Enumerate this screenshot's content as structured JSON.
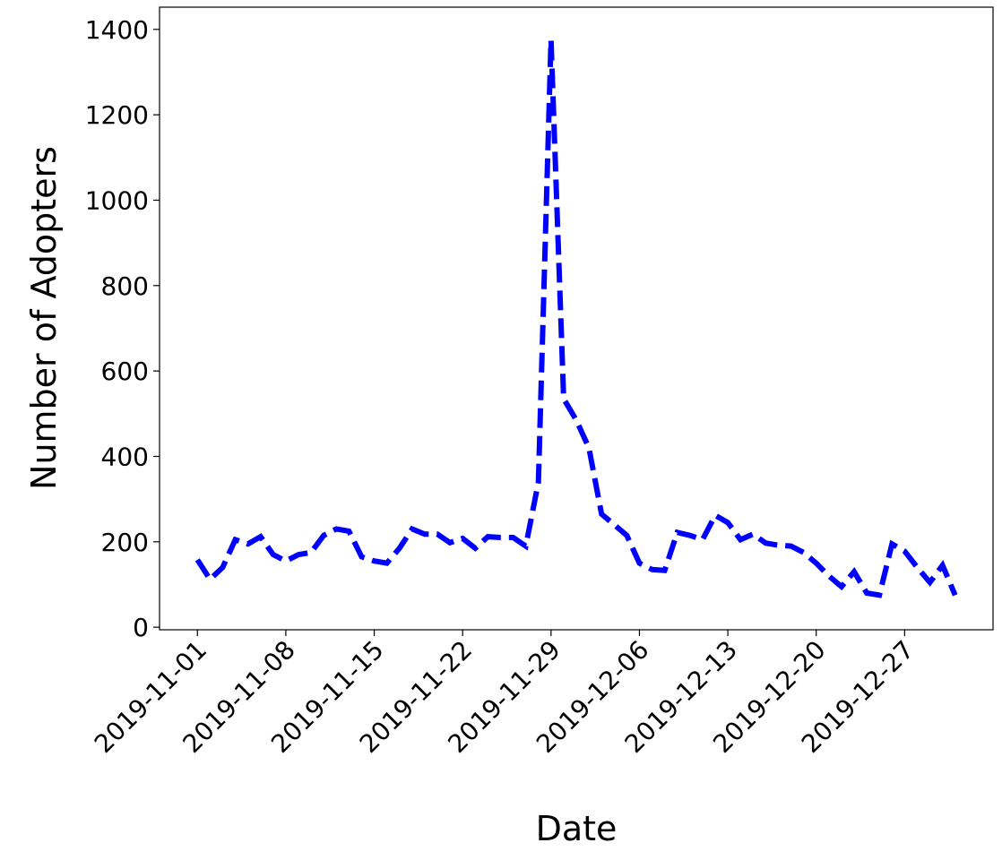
{
  "chart_data": {
    "type": "line",
    "x_label": "Date",
    "y_label": "Number of Adopters",
    "x": [
      "2019-11-01",
      "2019-11-02",
      "2019-11-03",
      "2019-11-04",
      "2019-11-05",
      "2019-11-06",
      "2019-11-07",
      "2019-11-08",
      "2019-11-09",
      "2019-11-10",
      "2019-11-11",
      "2019-11-12",
      "2019-11-13",
      "2019-11-14",
      "2019-11-15",
      "2019-11-16",
      "2019-11-17",
      "2019-11-18",
      "2019-11-19",
      "2019-11-20",
      "2019-11-21",
      "2019-11-22",
      "2019-11-23",
      "2019-11-24",
      "2019-11-25",
      "2019-11-26",
      "2019-11-27",
      "2019-11-28",
      "2019-11-29",
      "2019-11-30",
      "2019-12-01",
      "2019-12-02",
      "2019-12-03",
      "2019-12-04",
      "2019-12-05",
      "2019-12-06",
      "2019-12-07",
      "2019-12-08",
      "2019-12-09",
      "2019-12-10",
      "2019-12-11",
      "2019-12-12",
      "2019-12-13",
      "2019-12-14",
      "2019-12-15",
      "2019-12-16",
      "2019-12-17",
      "2019-12-18",
      "2019-12-19",
      "2019-12-20",
      "2019-12-21",
      "2019-12-22",
      "2019-12-23",
      "2019-12-24",
      "2019-12-25",
      "2019-12-26",
      "2019-12-27",
      "2019-12-28",
      "2019-12-29",
      "2019-12-30",
      "2019-12-31"
    ],
    "series": [
      {
        "color": "#0000ff",
        "dashed": true,
        "values": [
          158,
          112,
          140,
          205,
          195,
          212,
          170,
          155,
          170,
          175,
          215,
          230,
          225,
          165,
          155,
          150,
          185,
          230,
          218,
          218,
          198,
          208,
          185,
          212,
          210,
          210,
          190,
          340,
          1375,
          535,
          485,
          420,
          265,
          240,
          215,
          150,
          135,
          133,
          222,
          215,
          205,
          262,
          245,
          205,
          218,
          197,
          192,
          190,
          175,
          150,
          120,
          95,
          130,
          80,
          75,
          195,
          178,
          140,
          105,
          145,
          75
        ]
      }
    ],
    "xlim": [
      "2019-10-29",
      "2020-01-03"
    ],
    "xticks": [
      "2019-11-01",
      "2019-11-08",
      "2019-11-15",
      "2019-11-22",
      "2019-11-29",
      "2019-12-06",
      "2019-12-13",
      "2019-12-20",
      "2019-12-27"
    ],
    "ylim": [
      -6,
      1452
    ],
    "yticks": [
      0,
      200,
      400,
      600,
      800,
      1000,
      1200,
      1400
    ]
  }
}
